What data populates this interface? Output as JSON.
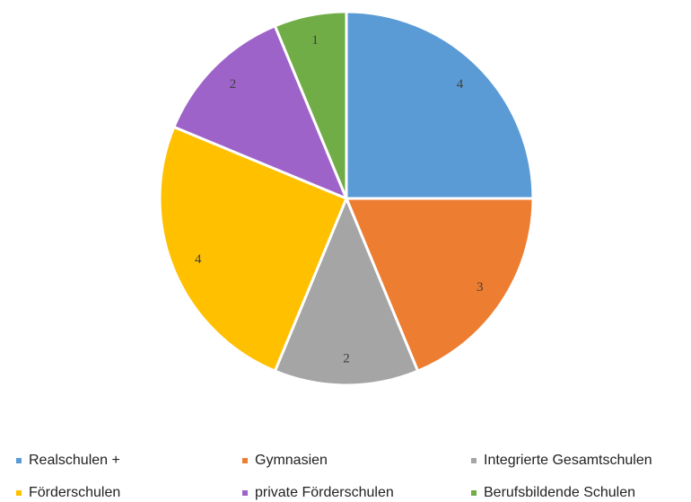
{
  "chart_data": {
    "type": "pie",
    "categories": [
      "Realschulen +",
      "Gymnasien",
      "Integrierte Gesamtschulen",
      "Förderschulen",
      "private Förderschulen",
      "Berufsbildende Schulen"
    ],
    "values": [
      4,
      3,
      2,
      4,
      2,
      1
    ],
    "colors": [
      "#5b9bd5",
      "#ed7d31",
      "#a5a5a5",
      "#ffc000",
      "#9e63c9",
      "#70ad47"
    ],
    "legend": "bottom"
  }
}
